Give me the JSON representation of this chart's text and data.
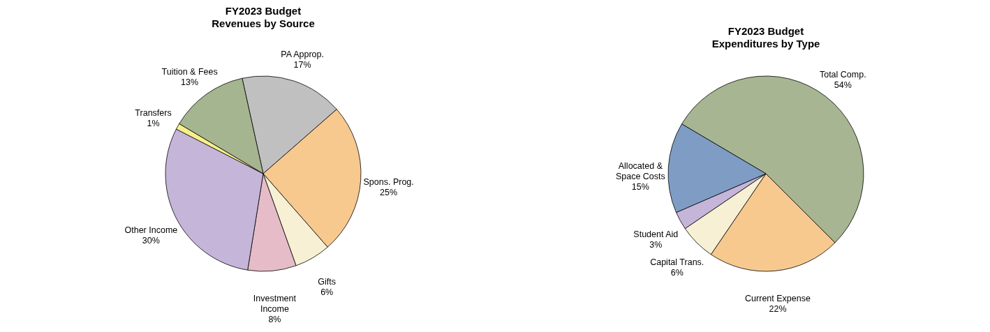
{
  "chart_data": [
    {
      "type": "pie",
      "title": "FY2023 Budget",
      "subtitle": "Revenues by Source",
      "categories": [
        "PA Approp.",
        "Spons. Prog.",
        "Gifts",
        "Investment Income",
        "Other Income",
        "Transfers",
        "Tuition & Fees"
      ],
      "values": [
        17,
        25,
        6,
        8,
        30,
        1,
        13
      ],
      "value_labels": [
        "17%",
        "25%",
        "6%",
        "8%",
        "30%",
        "1%",
        "13%"
      ],
      "colors": [
        "#c0c0c0",
        "#f7c98f",
        "#f8f0d4",
        "#e5bcc8",
        "#c5b5d9",
        "#f7f08a",
        "#a5b590"
      ]
    },
    {
      "type": "pie",
      "title": "FY2023 Budget",
      "subtitle": "Expenditures by Type",
      "categories": [
        "Total Comp.",
        "Current Expense",
        "Capital Trans.",
        "Student Aid",
        "Allocated & Space Costs"
      ],
      "values": [
        54,
        22,
        6,
        3,
        15
      ],
      "value_labels": [
        "54%",
        "22%",
        "6%",
        "3%",
        "15%"
      ],
      "colors": [
        "#a7b593",
        "#f7c98f",
        "#f8f0d4",
        "#c5b5d9",
        "#7f9dc4"
      ]
    }
  ]
}
